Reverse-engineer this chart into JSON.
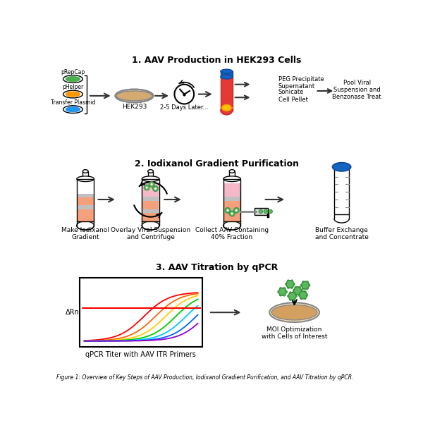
{
  "title1": "1. AAV Production in HEK293 Cells",
  "title2": "2. Iodixanol Gradient Purification",
  "title3": "3. AAV Titration by qPCR",
  "figure_caption": "Figure 1: Overview of Key Steps of AAV Production, Iodixanol Gradient Purification, and AAV Titration by qPCR.",
  "plasmid_labels": [
    "pRepCap",
    "pHelper",
    "Transfer Plasmid"
  ],
  "plasmid_colors": [
    "#4caf50",
    "#ff9800",
    "#2196f3"
  ],
  "hek293_label": "HEK293",
  "clock_label": "2-5 Days Later...",
  "peg_label": "PEG Precipitate\nSupernatant",
  "sonicate_label": "Sonicate\nCell Pellet",
  "pool_label": "Pool Viral\nSuspension and\nBenzonase Treat",
  "gradient_labels": [
    "Make Iodixanol\nGradient",
    "Overlay Viral Suspension\nand Centrifuge",
    "Collect AAV Containing\n40% Fraction",
    "Buffer Exchange\nand Concentrate"
  ],
  "section3_label1": "qPCR Titer with AAV ITR Primers",
  "section3_label2": "MOI Optimization\nwith Cells of Interest",
  "bg_color": "#ffffff",
  "tube_salmon": "#f4a07a",
  "tube_gray": "#c8c8c8",
  "tube_pink": "#f4b8c8",
  "arrow_color": "#333333",
  "green_dot": "#5cb85c",
  "qpcr_colors": [
    "#ff0000",
    "#ff6600",
    "#ffcc00",
    "#00cc00",
    "#00ccff",
    "#0066ff",
    "#9900cc"
  ],
  "threshold_color": "#ff0000"
}
